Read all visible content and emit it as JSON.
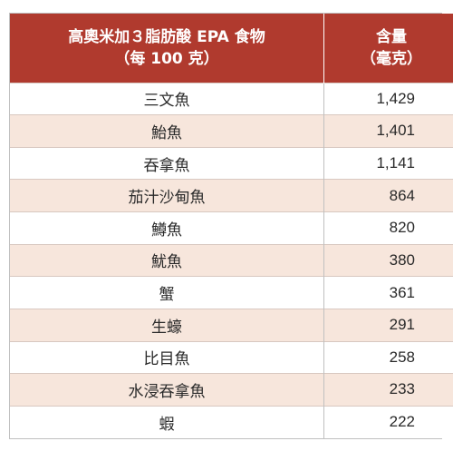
{
  "table": {
    "header": {
      "food_line1": "高奧米加３脂肪酸 EPA 食物",
      "food_line2": "（每 100 克）",
      "amount_line1": "含量",
      "amount_line2": "（毫克）"
    },
    "rows": [
      {
        "food": "三文魚",
        "amount": "1,429"
      },
      {
        "food": "鮐魚",
        "amount": "1,401"
      },
      {
        "food": "吞拿魚",
        "amount": "1,141"
      },
      {
        "food": "茄汁沙甸魚",
        "amount": "864"
      },
      {
        "food": "鱒魚",
        "amount": "820"
      },
      {
        "food": "魷魚",
        "amount": "380"
      },
      {
        "food": "蟹",
        "amount": "361"
      },
      {
        "food": "生蠔",
        "amount": "291"
      },
      {
        "food": "比目魚",
        "amount": "258"
      },
      {
        "food": "水浸吞拿魚",
        "amount": "233"
      },
      {
        "food": "蝦",
        "amount": "222"
      }
    ],
    "colors": {
      "header_bg": "#b03a2e",
      "stripe_bg": "#f7e6dc"
    }
  }
}
